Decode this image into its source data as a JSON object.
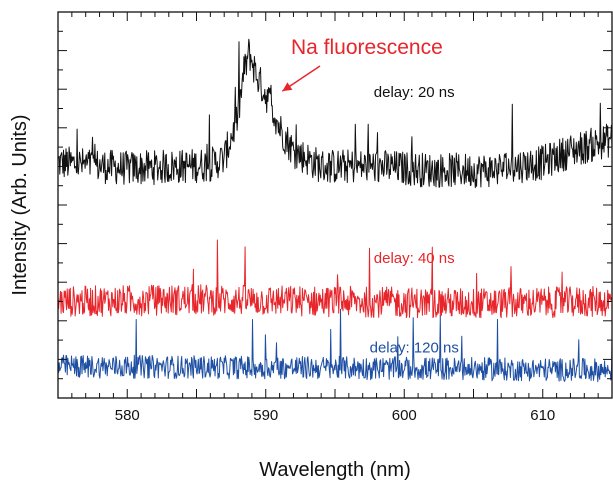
{
  "chart_data": {
    "type": "line",
    "title": "",
    "xlabel": "Wavelength (nm)",
    "ylabel": "Intensity (Arb. Units)",
    "xlim": [
      575,
      615
    ],
    "ylim": [
      0,
      1
    ],
    "x_ticks": [
      580,
      590,
      600,
      610
    ],
    "grid": false,
    "legend": "none",
    "annotations": [
      {
        "text": "Na fluorescence",
        "color": "#e8252b",
        "arrow_to_x": 591.2,
        "arrow_to_y": 0.795
      }
    ],
    "series": [
      {
        "name": "delay: 20 ns",
        "color": "#111111",
        "label_x": 597.8,
        "label_y": 0.78,
        "baseline_x": [
          575,
          580,
          584,
          586,
          587,
          588,
          588.4,
          588.8,
          589.3,
          589.8,
          590.4,
          591,
          592,
          594,
          598,
          602,
          606,
          610,
          612,
          615
        ],
        "baseline_y": [
          0.61,
          0.595,
          0.6,
          0.605,
          0.62,
          0.73,
          0.84,
          0.895,
          0.84,
          0.8,
          0.76,
          0.7,
          0.64,
          0.6,
          0.6,
          0.59,
          0.59,
          0.61,
          0.64,
          0.67
        ]
      },
      {
        "name": "delay: 40 ns",
        "color": "#e8252b",
        "label_x": 597.8,
        "label_y": 0.35,
        "baseline_x": [
          575,
          585,
          595,
          605,
          615
        ],
        "baseline_y": [
          0.25,
          0.255,
          0.25,
          0.245,
          0.25
        ]
      },
      {
        "name": "delay: 120 ns",
        "color": "#1e4fa3",
        "label_x": 597.5,
        "label_y": 0.118,
        "baseline_x": [
          575,
          585,
          595,
          605,
          615
        ],
        "baseline_y": [
          0.082,
          0.08,
          0.078,
          0.075,
          0.072
        ]
      }
    ]
  }
}
